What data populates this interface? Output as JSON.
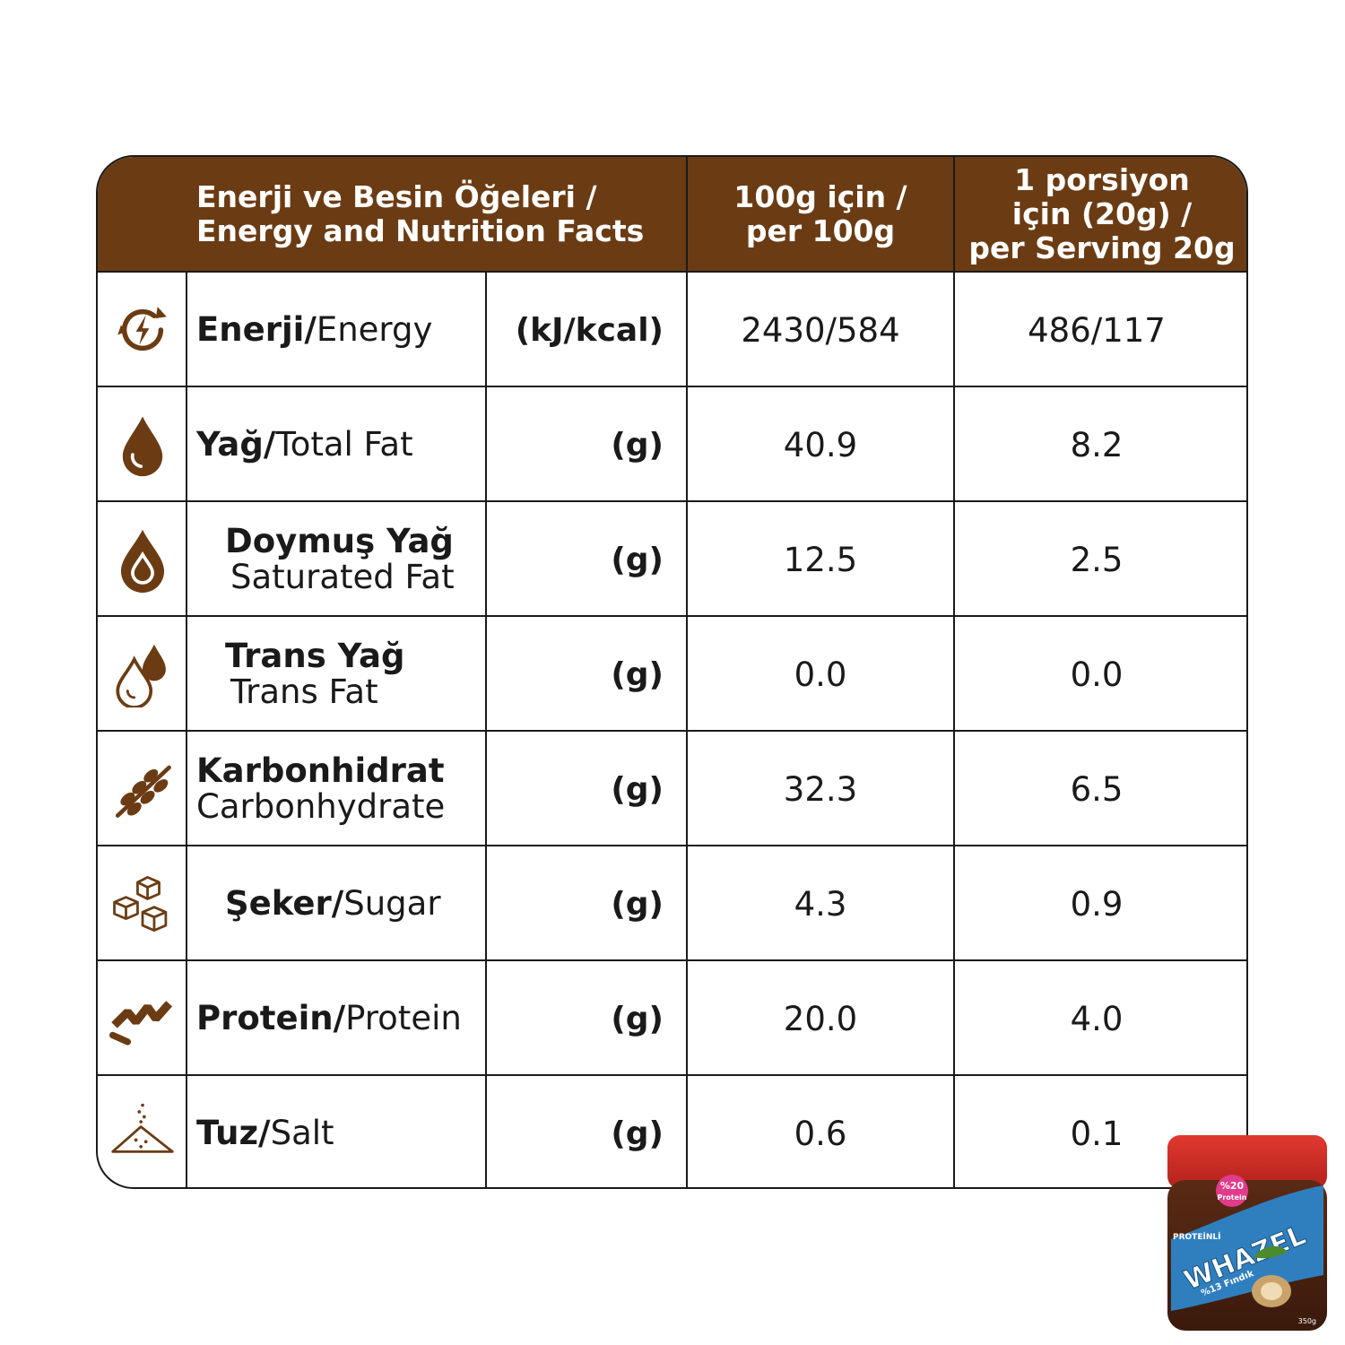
{
  "header": {
    "col1_line1": "Enerji ve Besin Öğeleri /",
    "col1_line2": "Energy and Nutrition Facts",
    "col2_line1": "100g için /",
    "col2_line2": "per 100g",
    "col3_line1": "1 porsiyon",
    "col3_line2": "için (20g) /",
    "col3_line3": "per Serving 20g"
  },
  "colors": {
    "brand_brown": "#6b3c14",
    "text": "#1a1a1a",
    "border": "#1a1a1a"
  },
  "rows": [
    {
      "icon": "energy-icon",
      "name_tr": "Enerji/",
      "name_en": "Energy",
      "unit": "(kJ/kcal)",
      "per100": "2430/584",
      "serving": "486/117"
    },
    {
      "icon": "fat-drop-icon",
      "name_tr": "Yağ/",
      "name_en": "Total Fat",
      "unit": "(g)",
      "per100": "40.9",
      "serving": "8.2"
    },
    {
      "icon": "saturated-fat-icon",
      "name_tr": "Doymuş Yağ",
      "name_en": "Saturated Fat",
      "unit": "(g)",
      "per100": "12.5",
      "serving": "2.5"
    },
    {
      "icon": "trans-fat-icon",
      "name_tr": "Trans Yağ",
      "name_en": "Trans Fat",
      "unit": "(g)",
      "per100": "0.0",
      "serving": "0.0"
    },
    {
      "icon": "wheat-icon",
      "name_tr": "Karbonhidrat",
      "name_en": "Carbonhydrate",
      "unit": "(g)",
      "per100": "32.3",
      "serving": "6.5"
    },
    {
      "icon": "sugar-cubes-icon",
      "name_tr": "Şeker/",
      "name_en": "Sugar",
      "unit": "(g)",
      "per100": "4.3",
      "serving": "0.9"
    },
    {
      "icon": "protein-helix-icon",
      "name_tr": "Protein/",
      "name_en": "Protein",
      "unit": "(g)",
      "per100": "20.0",
      "serving": "4.0"
    },
    {
      "icon": "salt-pile-icon",
      "name_tr": "Tuz/",
      "name_en": "Salt",
      "unit": "(g)",
      "per100": "0.6",
      "serving": "0.1"
    }
  ],
  "product": {
    "brand": "WHAZEL",
    "protein_badge": "%20",
    "protein_word": "Protein",
    "side_text": "PROTEİNLİ",
    "hazelnut_text": "%13 Fındık",
    "weight": "350g"
  }
}
